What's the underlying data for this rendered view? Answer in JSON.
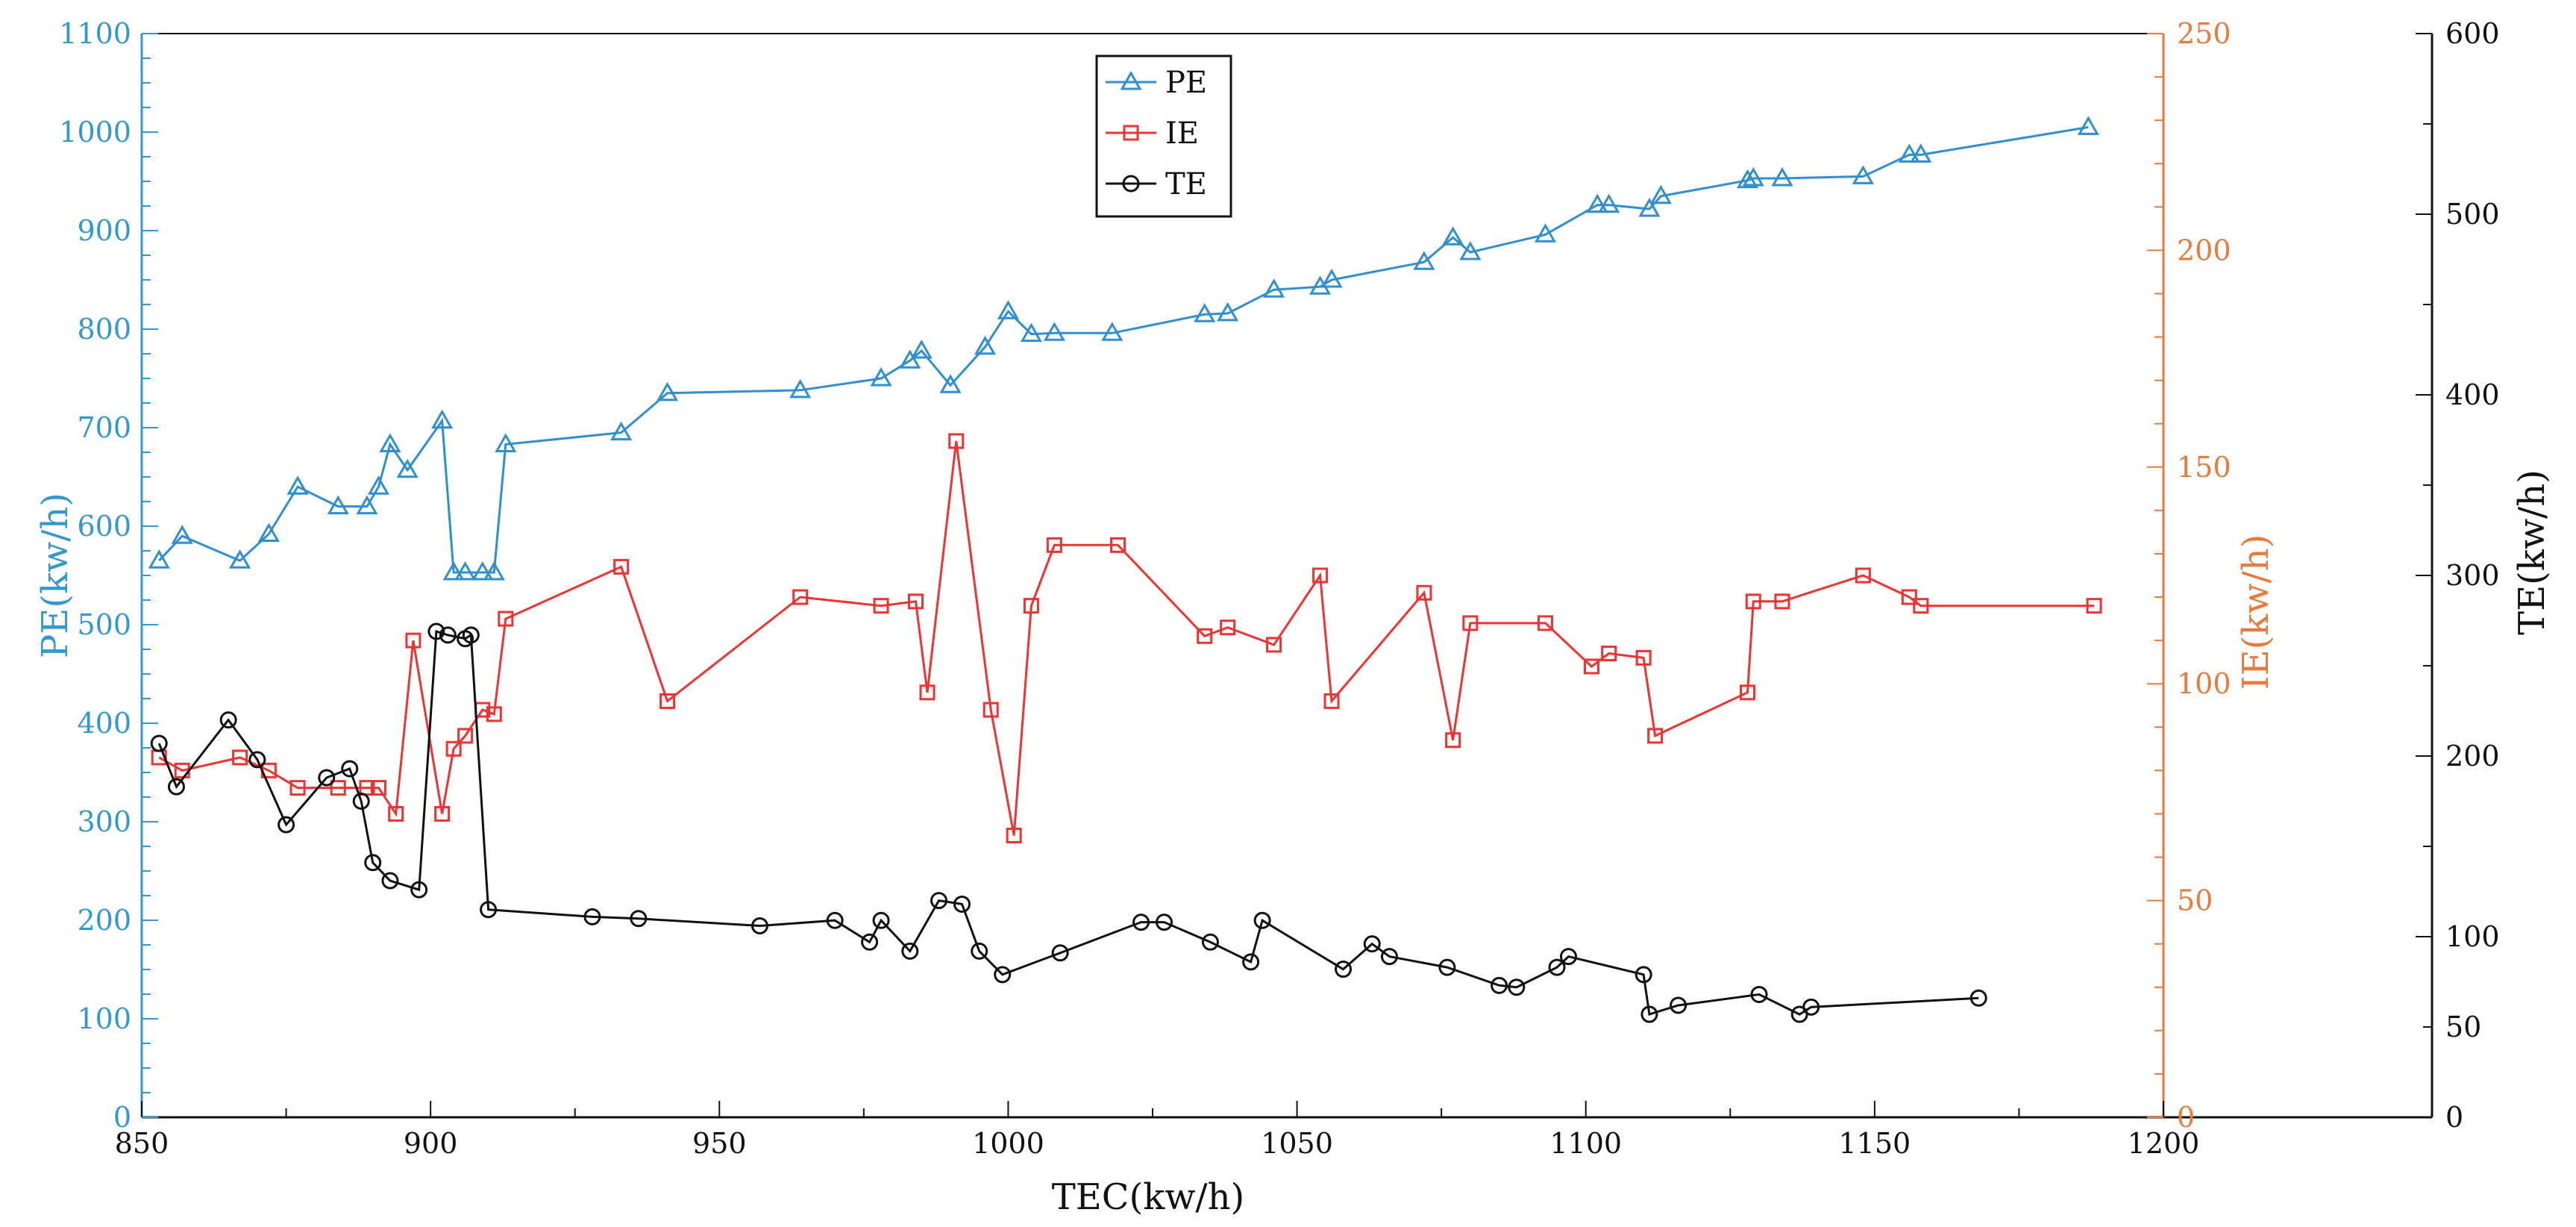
{
  "chart_data": {
    "type": "line",
    "xlabel": "TEC(kw/h)",
    "xlim": [
      850,
      1200
    ],
    "xticks": [
      850,
      900,
      950,
      1000,
      1050,
      1100,
      1150,
      1200
    ],
    "axes": {
      "pe": {
        "label": "PE(kw/h)",
        "ylim": [
          0,
          1100
        ],
        "ticks": [
          0,
          100,
          200,
          300,
          400,
          500,
          600,
          700,
          800,
          900,
          1000,
          1100
        ],
        "color": "#3399cc"
      },
      "ie": {
        "label": "IE(kw/h)",
        "ylim": [
          0,
          250
        ],
        "ticks": [
          0,
          50,
          100,
          150,
          200,
          250
        ],
        "color": "#e87a3c"
      },
      "te": {
        "label": "TE(kw/h)",
        "ylim": [
          0,
          600
        ],
        "ticks": [
          0,
          50,
          100,
          200,
          300,
          400,
          500,
          600
        ],
        "color": "#111111"
      }
    },
    "legend": [
      "PE",
      "IE",
      "TE"
    ],
    "series": [
      {
        "name": "PE",
        "axis": "pe",
        "color": "#2f8fd0",
        "marker": "triangle",
        "points": [
          [
            853,
            565
          ],
          [
            857,
            590
          ],
          [
            867,
            565
          ],
          [
            872,
            592
          ],
          [
            877,
            640
          ],
          [
            884,
            620
          ],
          [
            889,
            620
          ],
          [
            891,
            640
          ],
          [
            893,
            683
          ],
          [
            896,
            657
          ],
          [
            902,
            707
          ],
          [
            904,
            553
          ],
          [
            906,
            553
          ],
          [
            909,
            553
          ],
          [
            911,
            553
          ],
          [
            913,
            683
          ],
          [
            933,
            695
          ],
          [
            941,
            735
          ],
          [
            964,
            738
          ],
          [
            978,
            750
          ],
          [
            983,
            768
          ],
          [
            985,
            778
          ],
          [
            990,
            743
          ],
          [
            996,
            782
          ],
          [
            1000,
            818
          ],
          [
            1004,
            795
          ],
          [
            1008,
            796
          ],
          [
            1018,
            796
          ],
          [
            1034,
            815
          ],
          [
            1038,
            816
          ],
          [
            1046,
            840
          ],
          [
            1054,
            843
          ],
          [
            1056,
            850
          ],
          [
            1072,
            868
          ],
          [
            1077,
            893
          ],
          [
            1080,
            878
          ],
          [
            1093,
            896
          ],
          [
            1102,
            926
          ],
          [
            1104,
            926
          ],
          [
            1111,
            922
          ],
          [
            1113,
            935
          ],
          [
            1128,
            951
          ],
          [
            1129,
            953
          ],
          [
            1134,
            953
          ],
          [
            1148,
            955
          ],
          [
            1156,
            977
          ],
          [
            1158,
            977
          ],
          [
            1187,
            1005
          ]
        ]
      },
      {
        "name": "IE",
        "axis": "ie",
        "color": "#ee3333",
        "marker": "square",
        "points": [
          [
            853,
            83
          ],
          [
            857,
            80
          ],
          [
            867,
            83
          ],
          [
            872,
            80
          ],
          [
            877,
            76
          ],
          [
            884,
            76
          ],
          [
            889,
            76
          ],
          [
            891,
            76
          ],
          [
            894,
            70
          ],
          [
            897,
            110
          ],
          [
            902,
            70
          ],
          [
            904,
            85
          ],
          [
            906,
            88
          ],
          [
            909,
            94
          ],
          [
            911,
            93
          ],
          [
            913,
            115
          ],
          [
            933,
            127
          ],
          [
            941,
            96
          ],
          [
            964,
            120
          ],
          [
            978,
            118
          ],
          [
            984,
            119
          ],
          [
            986,
            98
          ],
          [
            991,
            156
          ],
          [
            997,
            94
          ],
          [
            1001,
            65
          ],
          [
            1004,
            118
          ],
          [
            1008,
            132
          ],
          [
            1019,
            132
          ],
          [
            1034,
            111
          ],
          [
            1038,
            113
          ],
          [
            1046,
            109
          ],
          [
            1054,
            125
          ],
          [
            1056,
            96
          ],
          [
            1072,
            121
          ],
          [
            1077,
            87
          ],
          [
            1080,
            114
          ],
          [
            1093,
            114
          ],
          [
            1101,
            104
          ],
          [
            1104,
            107
          ],
          [
            1110,
            106
          ],
          [
            1112,
            88
          ],
          [
            1128,
            98
          ],
          [
            1129,
            119
          ],
          [
            1134,
            119
          ],
          [
            1148,
            125
          ],
          [
            1156,
            120
          ],
          [
            1158,
            118
          ],
          [
            1188,
            118
          ]
        ]
      },
      {
        "name": "TE",
        "axis": "te",
        "color": "#111111",
        "marker": "circle",
        "points": [
          [
            853,
            207
          ],
          [
            856,
            183
          ],
          [
            865,
            220
          ],
          [
            870,
            198
          ],
          [
            875,
            162
          ],
          [
            882,
            188
          ],
          [
            886,
            193
          ],
          [
            888,
            175
          ],
          [
            890,
            141
          ],
          [
            893,
            131
          ],
          [
            898,
            126
          ],
          [
            901,
            269
          ],
          [
            903,
            267
          ],
          [
            906,
            265
          ],
          [
            907,
            267
          ],
          [
            910,
            115
          ],
          [
            928,
            111
          ],
          [
            936,
            110
          ],
          [
            957,
            106
          ],
          [
            970,
            109
          ],
          [
            976,
            97
          ],
          [
            978,
            109
          ],
          [
            983,
            92
          ],
          [
            988,
            120
          ],
          [
            992,
            118
          ],
          [
            995,
            92
          ],
          [
            999,
            79
          ],
          [
            1009,
            91
          ],
          [
            1023,
            108
          ],
          [
            1027,
            108
          ],
          [
            1035,
            97
          ],
          [
            1042,
            86
          ],
          [
            1044,
            109
          ],
          [
            1058,
            82
          ],
          [
            1063,
            96
          ],
          [
            1066,
            89
          ],
          [
            1076,
            83
          ],
          [
            1085,
            73
          ],
          [
            1088,
            72
          ],
          [
            1095,
            83
          ],
          [
            1097,
            89
          ],
          [
            1110,
            79
          ],
          [
            1111,
            57
          ],
          [
            1116,
            62
          ],
          [
            1130,
            68
          ],
          [
            1137,
            57
          ],
          [
            1139,
            61
          ],
          [
            1168,
            66
          ]
        ]
      }
    ]
  }
}
